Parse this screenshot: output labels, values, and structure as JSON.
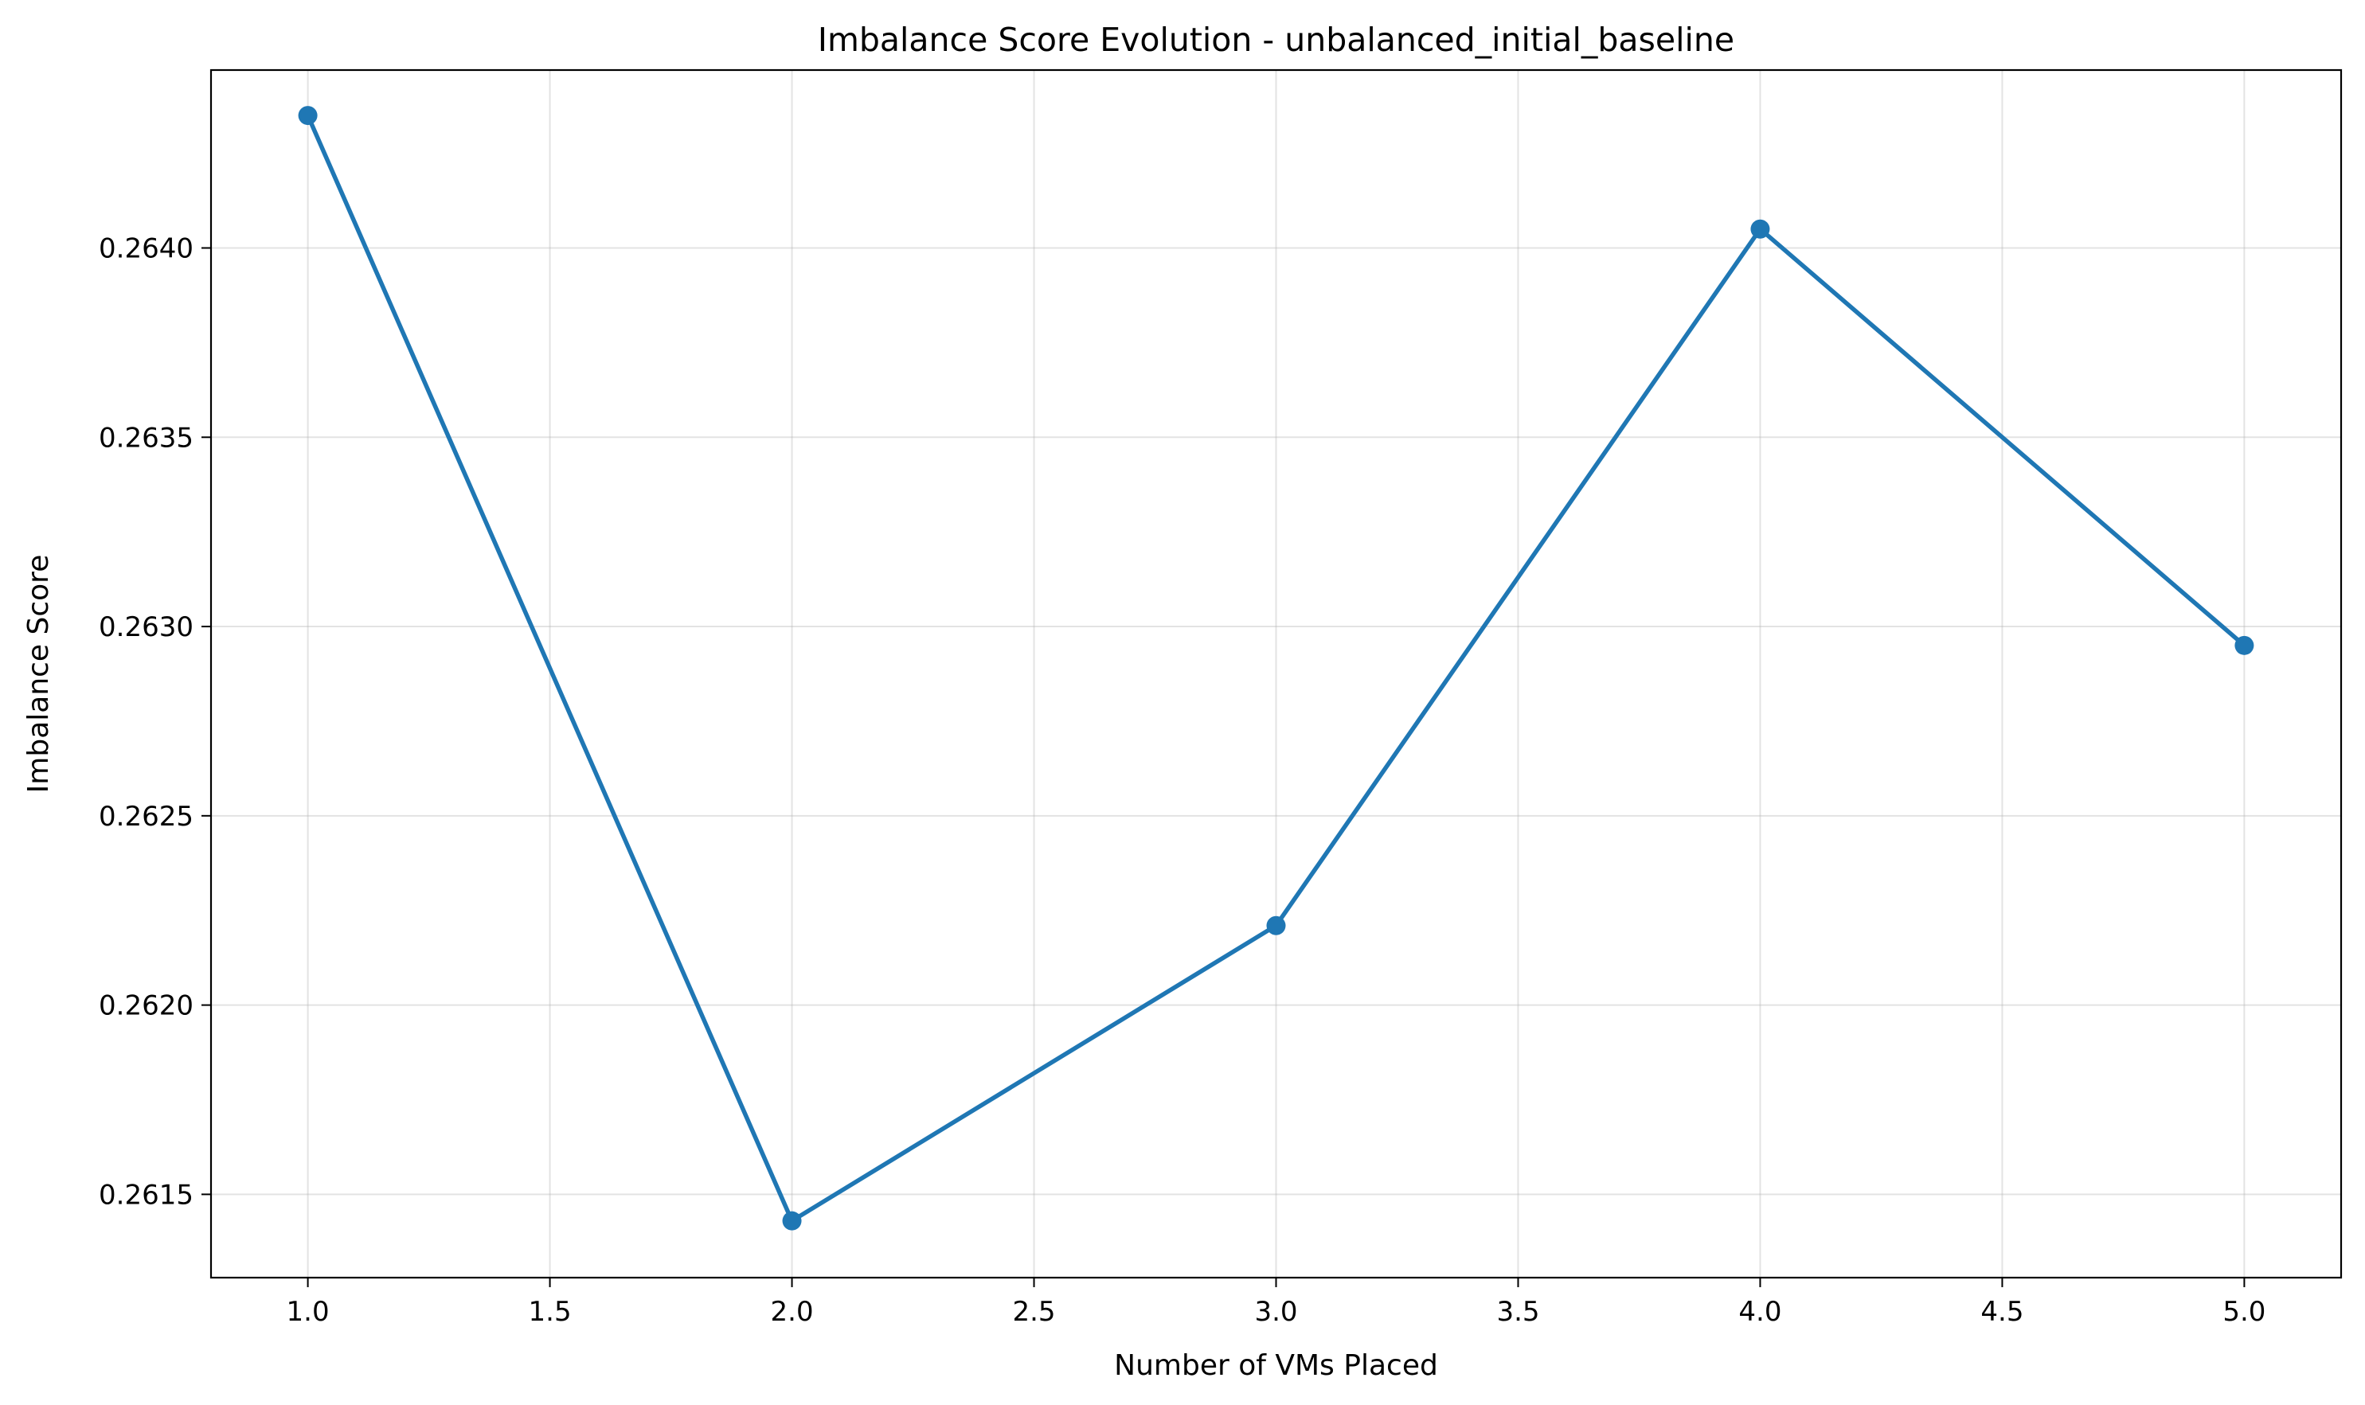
{
  "chart_data": {
    "type": "line",
    "title": "Imbalance Score Evolution - unbalanced_initial_baseline",
    "xlabel": "Number of VMs Placed",
    "ylabel": "Imbalance Score",
    "xlim": [
      0.8,
      5.2
    ],
    "ylim": [
      0.26128,
      0.26447
    ],
    "xticks": [
      1.0,
      1.5,
      2.0,
      2.5,
      3.0,
      3.5,
      4.0,
      4.5,
      5.0
    ],
    "xtick_labels": [
      "1.0",
      "1.5",
      "2.0",
      "2.5",
      "3.0",
      "3.5",
      "4.0",
      "4.5",
      "5.0"
    ],
    "yticks": [
      0.2615,
      0.262,
      0.2625,
      0.263,
      0.2635,
      0.264
    ],
    "ytick_labels": [
      "0.2615",
      "0.2620",
      "0.2625",
      "0.2630",
      "0.2635",
      "0.2640"
    ],
    "grid": true,
    "legend": "none",
    "series": [
      {
        "color": "#1f77b4",
        "marker": "circle",
        "x": [
          1,
          2,
          3,
          4,
          5
        ],
        "y": [
          0.26435,
          0.26143,
          0.26221,
          0.26405,
          0.26295
        ]
      }
    ]
  }
}
